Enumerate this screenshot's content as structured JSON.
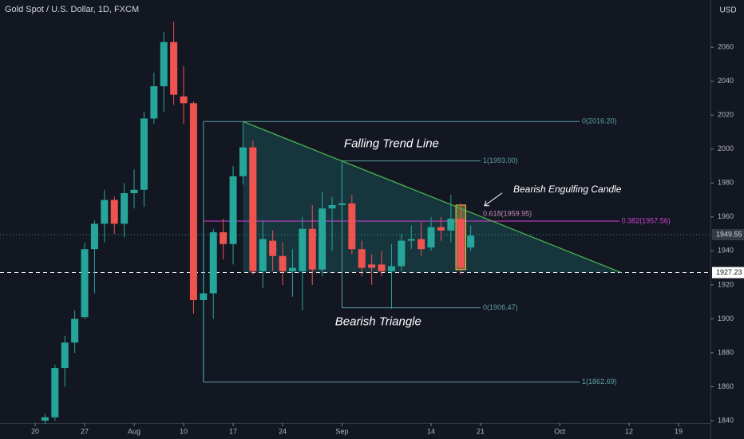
{
  "chart_data": {
    "type": "candlestick",
    "title": "Gold Spot / U.S. Dollar, 1D, FXCM",
    "currency": "USD",
    "up_color": "#26a69a",
    "down_color": "#ef5350",
    "x": [
      1,
      2,
      3,
      4,
      5,
      6,
      7,
      8,
      9,
      10,
      11,
      12,
      13,
      14,
      15,
      16,
      17,
      18,
      19,
      20,
      21,
      22,
      23,
      24,
      25,
      26,
      27,
      28,
      29,
      30,
      31,
      32,
      33,
      34,
      35,
      36,
      37,
      38,
      39,
      40,
      41,
      42,
      43,
      44
    ],
    "open": [
      1840,
      1842,
      1871,
      1886,
      1901,
      1941,
      1956,
      1970,
      1956,
      1974,
      1976,
      2018,
      2037,
      2063,
      2031,
      2027,
      1911,
      1915,
      1951,
      1944,
      1984,
      2001,
      1928,
      1946,
      1937,
      1928,
      1928,
      1953,
      1929,
      1965,
      1967,
      1968,
      1941,
      1932,
      1932,
      1928,
      1931,
      1946,
      1947,
      1942,
      1954,
      1952,
      1959,
      1942
    ],
    "high": [
      1844,
      1873,
      1890,
      1905,
      1945,
      1958,
      1976,
      1972,
      1980,
      1988,
      2022,
      2045,
      2069,
      2075,
      2049,
      2028,
      1949,
      1953,
      1959,
      1990,
      2016,
      2005,
      1958,
      1952,
      1945,
      1941,
      1960,
      1967,
      1975,
      1972,
      1993,
      1973,
      1946,
      1938,
      1940,
      1944,
      1950,
      1955,
      1957,
      1960,
      1960,
      1973,
      1968,
      1955
    ],
    "low": [
      1838,
      1840,
      1860,
      1880,
      1900,
      1915,
      1945,
      1950,
      1948,
      1965,
      1966,
      2015,
      2022,
      2026,
      2015,
      1903,
      1863,
      1900,
      1935,
      1932,
      1979,
      1926,
      1918,
      1928,
      1920,
      1913,
      1905,
      1920,
      1925,
      1940,
      1955,
      1938,
      1925,
      1920,
      1925,
      1906,
      1928,
      1941,
      1937,
      1940,
      1946,
      1945,
      1926,
      1940
    ],
    "close": [
      1842,
      1871,
      1886,
      1900,
      1941,
      1956,
      1970,
      1956,
      1974,
      1976,
      2018,
      2037,
      2063,
      2032,
      2027,
      1911,
      1915,
      1951,
      1944,
      1984,
      2001,
      1928,
      1947,
      1937,
      1928,
      1930,
      1953,
      1929,
      1965,
      1967,
      1968,
      1941,
      1930,
      1930,
      1928,
      1931,
      1946,
      1947,
      1941,
      1954,
      1952,
      1959,
      1930,
      1949
    ],
    "xlim": [
      -3.55,
      68.22
    ],
    "xticks": [
      {
        "value": 0,
        "label": "20"
      },
      {
        "value": 5,
        "label": "27"
      },
      {
        "value": 10,
        "label": "Aug"
      },
      {
        "value": 15,
        "label": "10"
      },
      {
        "value": 20,
        "label": "17"
      },
      {
        "value": 25,
        "label": "24"
      },
      {
        "value": 31,
        "label": "Sep"
      },
      {
        "value": 40,
        "label": "14"
      },
      {
        "value": 45,
        "label": "21"
      },
      {
        "value": 53,
        "label": "Oct"
      },
      {
        "value": 60,
        "label": "12"
      },
      {
        "value": 65,
        "label": "19"
      }
    ],
    "ylim": [
      1838.6,
      2087.8
    ],
    "yticks": [
      1840,
      1860,
      1880,
      1900,
      1920,
      1940,
      1960,
      1980,
      2000,
      2020,
      2040,
      2060
    ],
    "price_lines": [
      {
        "value": 1949.55,
        "label": "1949.55",
        "style": "dotted"
      },
      {
        "value": 1927.23,
        "label": "1927.23",
        "style": "dashed"
      }
    ],
    "fib_levels": [
      {
        "price": 2016.2,
        "label": "0(2016.20)",
        "x": [
          17,
          55
        ],
        "color": "#5b9ea1"
      },
      {
        "price": 1993.0,
        "label": "1(1993.00)",
        "x": [
          31,
          45
        ],
        "color": "#5b9ea1"
      },
      {
        "price": 1906.47,
        "label": "0(1906.47)",
        "x": [
          31,
          45
        ],
        "color": "#5b9ea1"
      },
      {
        "price": 1862.69,
        "label": "1(1862.69)",
        "x": [
          17,
          55
        ],
        "color": "#5b9ea1"
      },
      {
        "price": 1957.56,
        "label": "0.382(1957.56)",
        "x": [
          17,
          59
        ],
        "color": "#d63fdc"
      }
    ],
    "fib_extra_label": {
      "price": 1959.95,
      "label": "0.618(1959.95)",
      "x": 45
    },
    "trend_line": {
      "x": [
        21,
        59.2
      ],
      "y": [
        2016.2,
        1927.23
      ],
      "color": "#4caf50"
    },
    "highlight": {
      "x": [
        42.5,
        43.5
      ],
      "y": [
        1929,
        1967
      ],
      "color": "#f2c94c"
    },
    "annotations": [
      {
        "text": "Falling Trend Line",
        "x": 31.2,
        "y": 2003
      },
      {
        "text": "Bearish Engulfing Candle",
        "x": 48.3,
        "y": 1976
      },
      {
        "text": "Bearish Triangle",
        "x": 30.3,
        "y": 1898
      }
    ]
  }
}
